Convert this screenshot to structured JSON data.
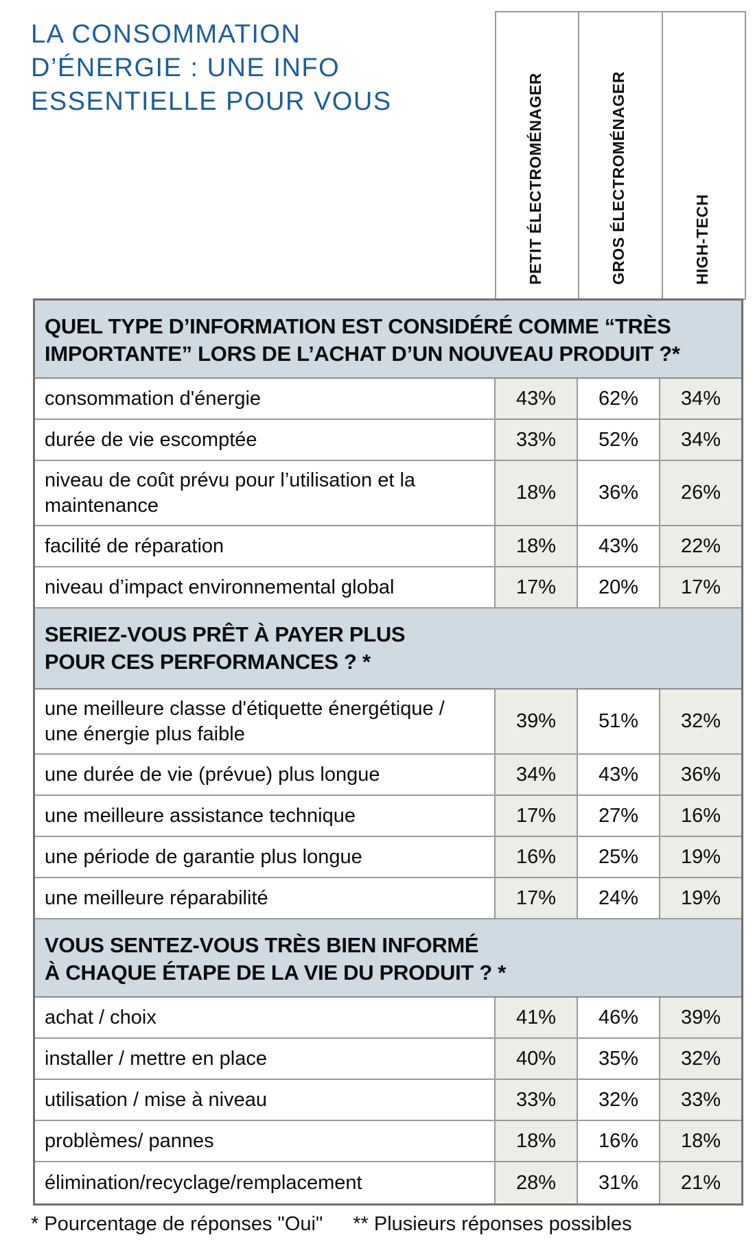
{
  "title": "LA CONSOMMATION\nD’ÉNERGIE : UNE INFO\nESSENTIELLE POUR VOUS",
  "columns": [
    "PETIT ÉLECTROMÉNAGER",
    "GROS ÉLECTROMÉNAGER",
    "HIGH-TECH"
  ],
  "sections": [
    {
      "header": "QUEL TYPE D’INFORMATION EST CONSIDÉRÉ COMME “TRÈS\nIMPORTANTE” LORS DE L’ACHAT D’UN NOUVEAU PRODUIT ?*",
      "rows": [
        {
          "label": "consommation d'énergie",
          "values": [
            "43%",
            "62%",
            "34%"
          ]
        },
        {
          "label": "durée de vie escomptée",
          "values": [
            "33%",
            "52%",
            "34%"
          ]
        },
        {
          "label": "niveau de coût prévu pour l’utilisation et la\nmaintenance",
          "values": [
            "18%",
            "36%",
            "26%"
          ]
        },
        {
          "label": "facilité de réparation",
          "values": [
            "18%",
            "43%",
            "22%"
          ]
        },
        {
          "label": "niveau d’impact environnemental global",
          "values": [
            "17%",
            "20%",
            "17%"
          ]
        }
      ]
    },
    {
      "header": "SERIEZ-VOUS PRÊT À PAYER PLUS\nPOUR CES PERFORMANCES ? *",
      "rows": [
        {
          "label": "une meilleure classe d'étiquette énergétique /\nune énergie plus faible",
          "values": [
            "39%",
            "51%",
            "32%"
          ]
        },
        {
          "label": "une durée de vie (prévue) plus longue",
          "values": [
            "34%",
            "43%",
            "36%"
          ]
        },
        {
          "label": "une meilleure assistance technique",
          "values": [
            "17%",
            "27%",
            "16%"
          ]
        },
        {
          "label": "une période de garantie plus longue",
          "values": [
            "16%",
            "25%",
            "19%"
          ]
        },
        {
          "label": "une meilleure réparabilité",
          "values": [
            "17%",
            "24%",
            "19%"
          ]
        }
      ]
    },
    {
      "header": "VOUS SENTEZ-VOUS TRÈS BIEN INFORMÉ\nÀ CHAQUE ÉTAPE DE LA VIE DU PRODUIT ? *",
      "rows": [
        {
          "label": "achat / choix",
          "values": [
            "41%",
            "46%",
            "39%"
          ]
        },
        {
          "label": "installer / mettre en place",
          "values": [
            "40%",
            "35%",
            "32%"
          ]
        },
        {
          "label": "utilisation / mise à niveau",
          "values": [
            "33%",
            "32%",
            "33%"
          ]
        },
        {
          "label": "problèmes/ pannes",
          "values": [
            "18%",
            "16%",
            "18%"
          ]
        },
        {
          "label": "élimination/recyclage/remplacement",
          "values": [
            "28%",
            "31%",
            "21%"
          ]
        }
      ]
    }
  ],
  "footnotes": {
    "note1": "* Pourcentage de réponses \"Oui\"",
    "note2": "** Plusieurs réponses possibles"
  },
  "colors": {
    "title_blue": "#1d5c9c",
    "section_band_blue": "#cfdae3",
    "shaded_cell": "#ecede7",
    "grid_gray": "#9a9a9a"
  },
  "chart_data": {
    "type": "table",
    "title": "LA CONSOMMATION D’ÉNERGIE : UNE INFO ESSENTIELLE POUR VOUS",
    "columns": [
      "PETIT ÉLECTROMÉNAGER",
      "GROS ÉLECTROMÉNAGER",
      "HIGH-TECH"
    ],
    "unit": "percent",
    "sections": [
      {
        "question": "QUEL TYPE D’INFORMATION EST CONSIDÉRÉ COMME “TRÈS IMPORTANTE” LORS DE L’ACHAT D’UN NOUVEAU PRODUIT ?*",
        "rows": [
          {
            "label": "consommation d'énergie",
            "values": [
              43,
              62,
              34
            ]
          },
          {
            "label": "durée de vie escomptée",
            "values": [
              33,
              52,
              34
            ]
          },
          {
            "label": "niveau de coût prévu pour l’utilisation et la maintenance",
            "values": [
              18,
              36,
              26
            ]
          },
          {
            "label": "facilité de réparation",
            "values": [
              18,
              43,
              22
            ]
          },
          {
            "label": "niveau d’impact environnemental global",
            "values": [
              17,
              20,
              17
            ]
          }
        ]
      },
      {
        "question": "SERIEZ-VOUS PRÊT À PAYER PLUS POUR CES PERFORMANCES ? *",
        "rows": [
          {
            "label": "une meilleure classe d'étiquette énergétique / une énergie plus faible",
            "values": [
              39,
              51,
              32
            ]
          },
          {
            "label": "une durée de vie (prévue) plus longue",
            "values": [
              34,
              43,
              36
            ]
          },
          {
            "label": "une meilleure assistance technique",
            "values": [
              17,
              27,
              16
            ]
          },
          {
            "label": "une période de garantie plus longue",
            "values": [
              16,
              25,
              19
            ]
          },
          {
            "label": "une meilleure réparabilité",
            "values": [
              17,
              24,
              19
            ]
          }
        ]
      },
      {
        "question": "VOUS SENTEZ-VOUS TRÈS BIEN INFORMÉ À CHAQUE ÉTAPE DE LA VIE DU PRODUIT ? *",
        "rows": [
          {
            "label": "achat / choix",
            "values": [
              41,
              46,
              39
            ]
          },
          {
            "label": "installer / mettre en place",
            "values": [
              40,
              35,
              32
            ]
          },
          {
            "label": "utilisation / mise à niveau",
            "values": [
              33,
              32,
              33
            ]
          },
          {
            "label": "problèmes/ pannes",
            "values": [
              18,
              16,
              18
            ]
          },
          {
            "label": "élimination/recyclage/remplacement",
            "values": [
              28,
              31,
              21
            ]
          }
        ]
      }
    ],
    "footnotes": [
      "* Pourcentage de réponses \"Oui\"",
      "** Plusieurs réponses possibles"
    ]
  }
}
